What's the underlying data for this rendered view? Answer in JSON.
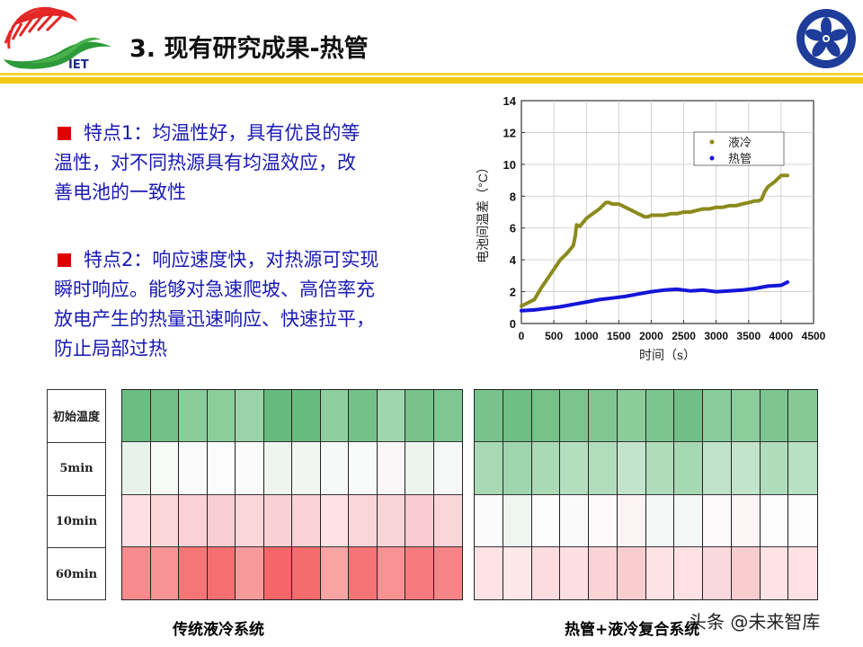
{
  "header": {
    "title": "3. 现有研究成果-热管",
    "logo_left_text": "IET",
    "logo_left_icon": "iet-logo-icon",
    "logo_right_icon": "cas-emblem-icon",
    "rule_colors": [
      "#f5d235",
      "#f4c814"
    ]
  },
  "bullets": [
    {
      "marker_color": "#e00000",
      "text": "特点1：均温性好，具有优良的等温性，对不同热源具有均温效应，改善电池的一致性"
    },
    {
      "marker_color": "#e00000",
      "text": "特点2：响应速度快，对热源可实现瞬时响应。能够对急速爬坡、高倍率充放电产生的热量迅速响应、快速拉平，防止局部过热"
    }
  ],
  "bullet_lines": [
    [
      "特点1：均温性好，具有优良的等",
      "温性，对不同热源具有均温效应，改",
      "善电池的一致性"
    ],
    [
      "特点2：响应速度快，对热源可实现",
      "瞬时响应。能够对急速爬坡、高倍率充",
      "放电产生的热量迅速响应、快速拉平，",
      "防止局部过热"
    ]
  ],
  "chart_data": [
    {
      "type": "line",
      "title": "",
      "xlabel": "时间（s）",
      "ylabel": "电池间温差（°C）",
      "xlim": [
        0,
        4500
      ],
      "ylim": [
        0,
        14
      ],
      "xticks": [
        0,
        500,
        1000,
        1500,
        2000,
        2500,
        3000,
        3500,
        4000,
        4500
      ],
      "yticks": [
        0,
        2,
        4,
        6,
        8,
        10,
        12,
        14
      ],
      "grid": true,
      "legend_position": "upper right",
      "series": [
        {
          "name": "液冷",
          "color": "#8b8b1e",
          "x": [
            0,
            100,
            200,
            300,
            400,
            500,
            600,
            700,
            800,
            830,
            850,
            900,
            1000,
            1100,
            1200,
            1300,
            1350,
            1400,
            1500,
            1600,
            1700,
            1800,
            1900,
            1950,
            2000,
            2100,
            2200,
            2300,
            2400,
            2500,
            2600,
            2700,
            2800,
            2900,
            3000,
            3100,
            3200,
            3300,
            3400,
            3500,
            3600,
            3650,
            3700,
            3750,
            3800,
            3900,
            4000,
            4050,
            4100
          ],
          "values": [
            1.1,
            1.3,
            1.5,
            2.2,
            2.8,
            3.4,
            4.0,
            4.4,
            4.9,
            5.5,
            6.2,
            6.1,
            6.6,
            6.9,
            7.2,
            7.6,
            7.6,
            7.5,
            7.5,
            7.3,
            7.1,
            6.9,
            6.7,
            6.7,
            6.8,
            6.8,
            6.8,
            6.9,
            6.9,
            7.0,
            7.0,
            7.1,
            7.2,
            7.2,
            7.3,
            7.3,
            7.4,
            7.4,
            7.5,
            7.6,
            7.7,
            7.7,
            7.8,
            8.3,
            8.6,
            8.9,
            9.3,
            9.3,
            9.3
          ]
        },
        {
          "name": "热管",
          "color": "#1515d8",
          "x": [
            0,
            200,
            400,
            600,
            800,
            1000,
            1200,
            1400,
            1600,
            1800,
            2000,
            2200,
            2400,
            2500,
            2600,
            2800,
            3000,
            3200,
            3400,
            3600,
            3800,
            4000,
            4100
          ],
          "values": [
            0.8,
            0.85,
            0.95,
            1.05,
            1.2,
            1.35,
            1.5,
            1.6,
            1.7,
            1.85,
            2.0,
            2.1,
            2.15,
            2.1,
            2.05,
            2.1,
            2.0,
            2.05,
            2.1,
            2.2,
            2.35,
            2.4,
            2.6
          ]
        }
      ]
    },
    {
      "type": "heatmap",
      "title": "传统液冷系统",
      "row_labels": [
        "初始温度",
        "5min",
        "10min",
        "60min"
      ],
      "columns": 12,
      "cell_colors": [
        [
          "#6cbd82",
          "#72c087",
          "#8acd9b",
          "#8ccd9c",
          "#9bd3a8",
          "#66b97d",
          "#68bb7f",
          "#8fcf9f",
          "#74c289",
          "#9ed5ab",
          "#76c28a",
          "#7fc693"
        ],
        [
          "#e7f2ea",
          "#f7fbf8",
          "#fbfbfc",
          "#fcfcfc",
          "#fcfbfc",
          "#eef4f0",
          "#f1f6f2",
          "#f6f9f7",
          "#f9fbfa",
          "#fbf7f8",
          "#edf3ef",
          "#f7f9f8"
        ],
        [
          "#fde0e3",
          "#fbd6d9",
          "#fad1d5",
          "#f9ced2",
          "#fbd6d9",
          "#f9d0d4",
          "#fad3d7",
          "#fde1e3",
          "#fad6d9",
          "#fad5d8",
          "#f8ccd0",
          "#fad6d9"
        ],
        [
          "#f78b8d",
          "#f89496",
          "#f67576",
          "#f66f71",
          "#f89a9b",
          "#f56668",
          "#f66b6d",
          "#f8a3a4",
          "#f67476",
          "#f89293",
          "#f67b7d",
          "#f78486"
        ]
      ]
    },
    {
      "type": "heatmap",
      "title": "热管+液冷复合系统",
      "row_labels": [
        "初始温度",
        "5min",
        "10min",
        "60min"
      ],
      "columns": 12,
      "cell_colors": [
        [
          "#78c38b",
          "#6fbe84",
          "#76c289",
          "#7ac48d",
          "#7fc691",
          "#8acc9a",
          "#7cc58f",
          "#71bf86",
          "#8acc9b",
          "#8ccd9c",
          "#7ec591",
          "#85c996"
        ],
        [
          "#a8d9b4",
          "#9fd5ad",
          "#a9d9b5",
          "#b4dfbf",
          "#b1ddbc",
          "#c2e4cb",
          "#afdcba",
          "#a6d8b2",
          "#c0e3c9",
          "#c2e4ca",
          "#afdcba",
          "#b8e0c2"
        ],
        [
          "#fbfbfc",
          "#eff5f1",
          "#fcfcfd",
          "#fbfafb",
          "#fcfafb",
          "#fcf3f5",
          "#f6f8f8",
          "#f3f7f5",
          "#fcfafb",
          "#fdf5f6",
          "#fcfcfd",
          "#fdfdfd"
        ],
        [
          "#fde2e5",
          "#fde7e9",
          "#fcdcdf",
          "#fcdfe2",
          "#fbd3d7",
          "#f9ccd0",
          "#fde2e5",
          "#fde1e4",
          "#fbd8db",
          "#f9ccd0",
          "#fde3e6",
          "#fde1e4"
        ]
      ]
    }
  ],
  "heatmap": {
    "row_labels": [
      "初始温度",
      "5min",
      "10min",
      "60min"
    ]
  },
  "captions": {
    "left": "传统液冷系统",
    "right": "热管+液冷复合系统"
  },
  "watermark": "头条 @未来智库"
}
